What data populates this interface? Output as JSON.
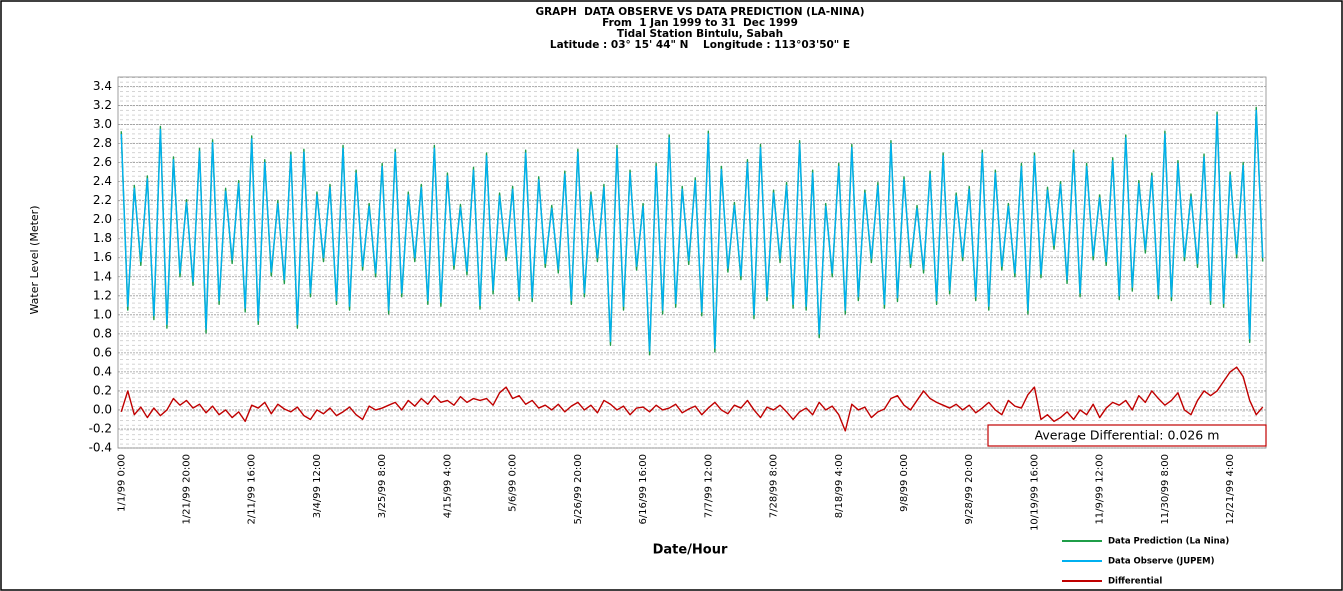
{
  "chart_data": {
    "type": "line",
    "title": "GRAPH  DATA OBSERVE VS DATA PREDICTION (LA-NINA)",
    "subtitle": [
      "From  1 Jan 1999 to 31  Dec 1999",
      "Tidal Station Bintulu, Sabah",
      "Latitude : 03° 15' 44\" N    Longitude : 113°03'50\" E"
    ],
    "ylabel": "Water Level (Meter)",
    "xlabel": "Date/Hour",
    "annotation": "Average Differential: 0.026 m",
    "grid": true,
    "legend": "bottom-right",
    "ylim": [
      -0.4,
      3.5
    ],
    "yticks": [
      {
        "value": -0.4,
        "label": "-0.4"
      },
      -0.2,
      {
        "value": 0,
        "label": "0.0"
      },
      0.2,
      0.4,
      0.6,
      0.8,
      {
        "value": 1,
        "label": "1.0"
      },
      1.2,
      1.4,
      1.6,
      1.8,
      {
        "value": 2,
        "label": "2.0"
      },
      2.2,
      2.4,
      2.6,
      2.8,
      {
        "value": 3,
        "label": "3.0"
      },
      3.2,
      3.4
    ],
    "categories": [
      "1/1/99 0:00",
      null,
      null,
      null,
      null,
      null,
      null,
      null,
      null,
      null,
      "1/21/99 20:00",
      null,
      null,
      null,
      null,
      null,
      null,
      null,
      null,
      null,
      "2/11/99 16:00",
      null,
      null,
      null,
      null,
      null,
      null,
      null,
      null,
      null,
      "3/4/99 12:00",
      null,
      null,
      null,
      null,
      null,
      null,
      null,
      null,
      null,
      "3/25/99 8:00",
      null,
      null,
      null,
      null,
      null,
      null,
      null,
      null,
      null,
      "4/15/99 4:00",
      null,
      null,
      null,
      null,
      null,
      null,
      null,
      null,
      null,
      "5/6/99 0:00",
      null,
      null,
      null,
      null,
      null,
      null,
      null,
      null,
      null,
      "5/26/99 20:00",
      null,
      null,
      null,
      null,
      null,
      null,
      null,
      null,
      null,
      "6/16/99 16:00",
      null,
      null,
      null,
      null,
      null,
      null,
      null,
      null,
      null,
      "7/7/99 12:00",
      null,
      null,
      null,
      null,
      null,
      null,
      null,
      null,
      null,
      "7/28/99 8:00",
      null,
      null,
      null,
      null,
      null,
      null,
      null,
      null,
      null,
      "8/18/99 4:00",
      null,
      null,
      null,
      null,
      null,
      null,
      null,
      null,
      null,
      "9/8/99 0:00",
      null,
      null,
      null,
      null,
      null,
      null,
      null,
      null,
      null,
      "9/28/99 20:00",
      null,
      null,
      null,
      null,
      null,
      null,
      null,
      null,
      null,
      "10/19/99 16:00",
      null,
      null,
      null,
      null,
      null,
      null,
      null,
      null,
      null,
      "11/9/99 12:00",
      null,
      null,
      null,
      null,
      null,
      null,
      null,
      null,
      null,
      "11/30/99 8:00",
      null,
      null,
      null,
      null,
      null,
      null,
      null,
      null,
      null,
      "12/21/99 4:00",
      null,
      null,
      null,
      null,
      null
    ],
    "series": [
      {
        "name": "Data Prediction (La Nina)",
        "color": "#1f9e48",
        "values": [
          2.93,
          1.05,
          2.36,
          1.52,
          2.46,
          0.95,
          2.98,
          0.86,
          2.66,
          1.4,
          2.21,
          1.31,
          2.75,
          0.81,
          2.84,
          1.11,
          2.33,
          1.54,
          2.41,
          1.03,
          2.88,
          0.9,
          2.63,
          1.41,
          2.2,
          1.33,
          2.71,
          0.86,
          2.74,
          1.19,
          2.29,
          1.56,
          2.37,
          1.11,
          2.78,
          1.05,
          2.52,
          1.47,
          2.17,
          1.4,
          2.59,
          1.01,
          2.74,
          1.19,
          2.29,
          1.56,
          2.37,
          1.11,
          2.78,
          1.09,
          2.49,
          1.48,
          2.16,
          1.42,
          2.55,
          1.06,
          2.7,
          1.22,
          2.28,
          1.57,
          2.35,
          1.15,
          2.73,
          1.14,
          2.45,
          1.5,
          2.15,
          1.44,
          2.51,
          1.11,
          2.74,
          1.19,
          2.29,
          1.56,
          2.37,
          0.68,
          2.78,
          1.05,
          2.52,
          1.47,
          2.17,
          0.58,
          2.59,
          1.01,
          2.89,
          1.08,
          2.35,
          1.53,
          2.44,
          0.99,
          2.93,
          0.61,
          2.56,
          1.45,
          2.18,
          1.37,
          2.63,
          0.96,
          2.79,
          1.15,
          2.31,
          1.55,
          2.39,
          1.07,
          2.83,
          1.05,
          2.52,
          0.76,
          2.17,
          1.4,
          2.59,
          1.01,
          2.79,
          1.15,
          2.31,
          1.55,
          2.39,
          1.07,
          2.83,
          1.14,
          2.45,
          1.5,
          2.15,
          1.44,
          2.51,
          1.11,
          2.7,
          1.22,
          2.28,
          1.57,
          2.35,
          1.15,
          2.73,
          1.05,
          2.52,
          1.47,
          2.17,
          1.4,
          2.59,
          1.01,
          2.7,
          1.39,
          2.34,
          1.69,
          2.4,
          1.33,
          2.73,
          1.19,
          2.59,
          1.58,
          2.26,
          1.52,
          2.65,
          1.16,
          2.89,
          1.25,
          2.41,
          1.65,
          2.49,
          1.17,
          2.93,
          1.15,
          2.62,
          1.57,
          2.27,
          1.5,
          2.69,
          1.11,
          3.13,
          1.08,
          2.5,
          1.6,
          2.6,
          0.71,
          3.18,
          1.56
        ]
      },
      {
        "name": "Data Observe (JUPEM)",
        "color": "#00b0f0",
        "values": [
          2.9,
          1.09,
          2.33,
          1.56,
          2.43,
          0.99,
          2.95,
          0.9,
          2.63,
          1.44,
          2.18,
          1.35,
          2.72,
          0.85,
          2.81,
          1.15,
          2.3,
          1.58,
          2.38,
          1.07,
          2.85,
          0.94,
          2.6,
          1.45,
          2.17,
          1.37,
          2.68,
          0.9,
          2.71,
          1.23,
          2.26,
          1.6,
          2.34,
          1.15,
          2.75,
          1.09,
          2.49,
          1.51,
          2.14,
          1.44,
          2.56,
          1.05,
          2.71,
          1.23,
          2.26,
          1.6,
          2.34,
          1.15,
          2.75,
          1.13,
          2.46,
          1.52,
          2.13,
          1.46,
          2.52,
          1.1,
          2.67,
          1.26,
          2.25,
          1.61,
          2.32,
          1.19,
          2.7,
          1.18,
          2.42,
          1.54,
          2.12,
          1.48,
          2.48,
          1.15,
          2.71,
          1.23,
          2.26,
          1.6,
          2.34,
          0.72,
          2.75,
          1.09,
          2.49,
          1.51,
          2.14,
          0.62,
          2.56,
          1.05,
          2.86,
          1.12,
          2.32,
          1.57,
          2.41,
          1.03,
          2.9,
          0.65,
          2.53,
          1.49,
          2.15,
          1.41,
          2.6,
          1.0,
          2.76,
          1.19,
          2.28,
          1.59,
          2.36,
          1.11,
          2.8,
          1.09,
          2.49,
          0.8,
          2.14,
          1.44,
          2.56,
          1.05,
          2.76,
          1.19,
          2.28,
          1.59,
          2.36,
          1.11,
          2.8,
          1.18,
          2.42,
          1.54,
          2.12,
          1.48,
          2.48,
          1.15,
          2.67,
          1.26,
          2.25,
          1.61,
          2.32,
          1.19,
          2.7,
          1.09,
          2.49,
          1.51,
          2.14,
          1.44,
          2.56,
          1.05,
          2.67,
          1.43,
          2.31,
          1.73,
          2.37,
          1.37,
          2.7,
          1.23,
          2.56,
          1.62,
          2.23,
          1.56,
          2.62,
          1.2,
          2.86,
          1.29,
          2.38,
          1.69,
          2.46,
          1.21,
          2.9,
          1.19,
          2.59,
          1.61,
          2.24,
          1.54,
          2.66,
          1.15,
          3.1,
          1.12,
          2.47,
          1.64,
          2.57,
          0.75,
          3.15,
          1.6
        ]
      },
      {
        "name": "Differential",
        "color": "#c00000",
        "values": [
          -0.02,
          0.2,
          -0.05,
          0.03,
          -0.08,
          0.02,
          -0.06,
          0.0,
          0.12,
          0.05,
          0.1,
          0.02,
          0.06,
          -0.03,
          0.04,
          -0.05,
          0.0,
          -0.08,
          -0.02,
          -0.12,
          0.05,
          0.02,
          0.08,
          -0.04,
          0.06,
          0.01,
          -0.02,
          0.03,
          -0.06,
          -0.1,
          0.0,
          -0.04,
          0.02,
          -0.06,
          -0.02,
          0.03,
          -0.05,
          -0.1,
          0.04,
          0.0,
          0.02,
          0.05,
          0.08,
          0.0,
          0.1,
          0.04,
          0.12,
          0.06,
          0.15,
          0.08,
          0.1,
          0.05,
          0.14,
          0.08,
          0.12,
          0.1,
          0.12,
          0.05,
          0.18,
          0.24,
          0.12,
          0.15,
          0.06,
          0.1,
          0.02,
          0.05,
          0.0,
          0.06,
          -0.02,
          0.04,
          0.08,
          0.0,
          0.05,
          -0.03,
          0.1,
          0.06,
          0.0,
          0.04,
          -0.05,
          0.02,
          0.03,
          -0.02,
          0.05,
          0.0,
          0.02,
          0.06,
          -0.03,
          0.01,
          0.04,
          -0.05,
          0.02,
          0.08,
          0.0,
          -0.04,
          0.05,
          0.02,
          0.1,
          0.0,
          -0.08,
          0.03,
          0.0,
          0.05,
          -0.02,
          -0.1,
          -0.02,
          0.02,
          -0.05,
          0.08,
          0.0,
          0.04,
          -0.05,
          -0.22,
          0.06,
          0.0,
          0.03,
          -0.08,
          -0.02,
          0.01,
          0.12,
          0.15,
          0.05,
          0.0,
          0.1,
          0.2,
          0.12,
          0.08,
          0.05,
          0.02,
          0.06,
          0.0,
          0.05,
          -0.03,
          0.02,
          0.08,
          0.0,
          -0.05,
          0.1,
          0.04,
          0.02,
          0.16,
          0.24,
          -0.1,
          -0.05,
          -0.12,
          -0.08,
          -0.02,
          -0.1,
          0.0,
          -0.05,
          0.06,
          -0.08,
          0.02,
          0.08,
          0.05,
          0.1,
          0.0,
          0.15,
          0.08,
          0.2,
          0.12,
          0.05,
          0.1,
          0.18,
          0.0,
          -0.05,
          0.1,
          0.2,
          0.15,
          0.2,
          0.3,
          0.4,
          0.45,
          0.35,
          0.1,
          -0.05,
          0.03
        ]
      }
    ]
  }
}
